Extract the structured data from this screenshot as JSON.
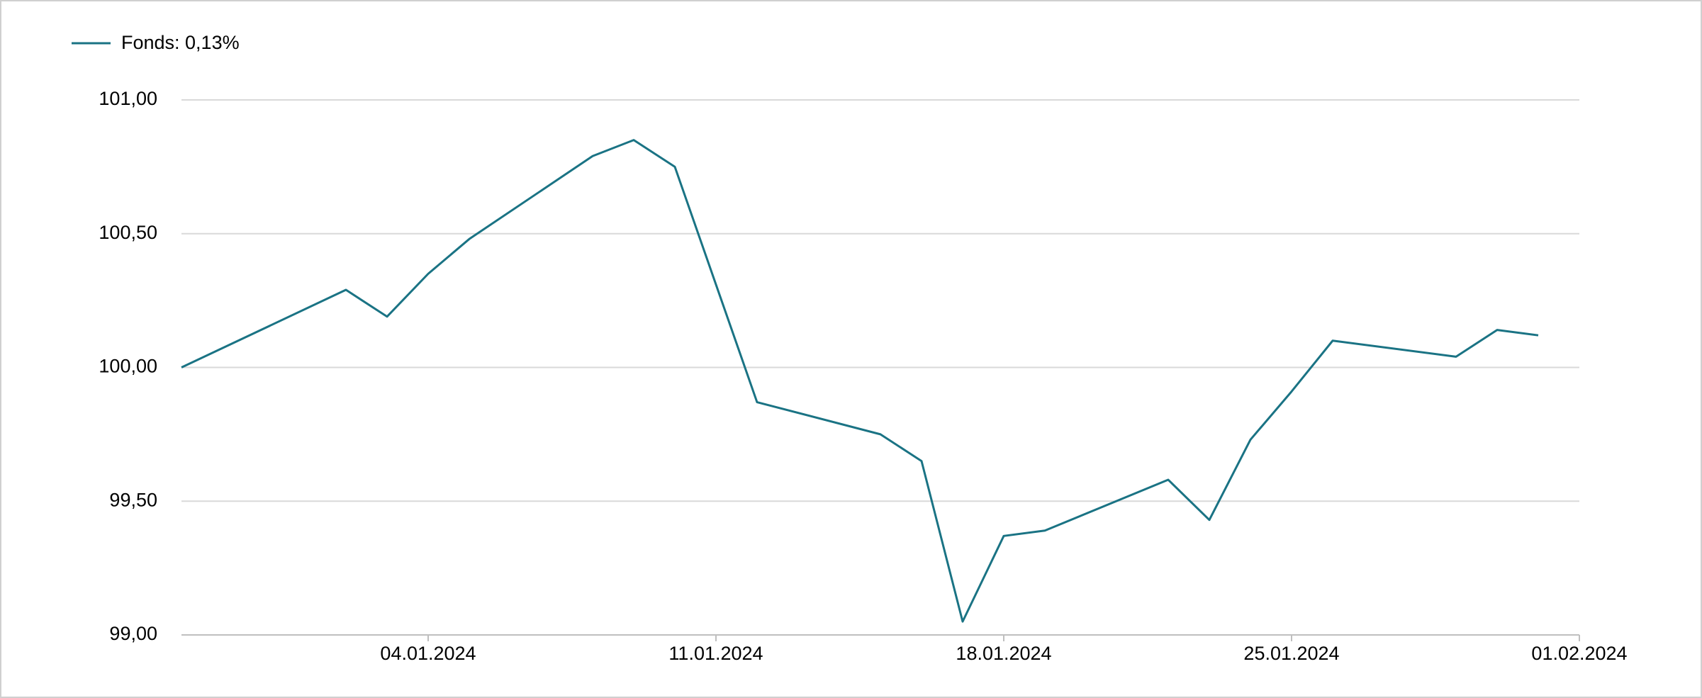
{
  "chart_data": {
    "type": "line",
    "legend": "Fonds: 0,13%",
    "x": [
      "29.12.2023",
      "02.01.2024",
      "03.01.2024",
      "04.01.2024",
      "05.01.2024",
      "08.01.2024",
      "09.01.2024",
      "10.01.2024",
      "11.01.2024",
      "12.01.2024",
      "15.01.2024",
      "16.01.2024",
      "17.01.2024",
      "18.01.2024",
      "19.01.2024",
      "22.01.2024",
      "23.01.2024",
      "24.01.2024",
      "25.01.2024",
      "26.01.2024",
      "29.01.2024",
      "30.01.2024",
      "31.01.2024"
    ],
    "series": [
      {
        "name": "Fonds",
        "color": "#1a7384",
        "values": [
          100.0,
          100.29,
          100.19,
          100.35,
          100.48,
          100.79,
          100.85,
          100.75,
          100.31,
          99.87,
          99.75,
          99.65,
          99.05,
          99.37,
          99.39,
          99.58,
          99.43,
          99.73,
          99.91,
          100.1,
          100.04,
          100.14,
          100.12
        ]
      }
    ],
    "xlim": [
      "29.12.2023",
      "01.02.2024"
    ],
    "xticks": [
      "04.01.2024",
      "11.01.2024",
      "18.01.2024",
      "25.01.2024",
      "01.02.2024"
    ],
    "ylim": [
      99,
      101
    ],
    "yticks": [
      {
        "value": 99,
        "label": "99,00"
      },
      {
        "value": 99.5,
        "label": "99,50"
      },
      {
        "value": 100,
        "label": "100,00"
      },
      {
        "value": 100.5,
        "label": "100,50"
      },
      {
        "value": 101,
        "label": "101,00"
      }
    ],
    "grid": true
  }
}
